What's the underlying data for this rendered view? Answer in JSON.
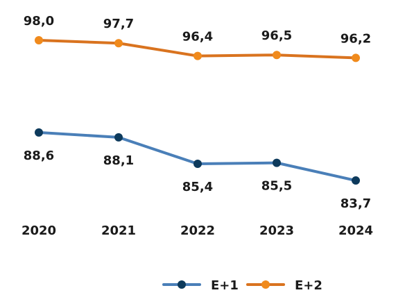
{
  "chart_data": {
    "type": "line",
    "title": "",
    "xlabel": "",
    "ylabel": "",
    "x": [
      "2020",
      "2021",
      "2022",
      "2023",
      "2024"
    ],
    "ylim": [
      80,
      100
    ],
    "grid": false,
    "legend_position": "bottom-center",
    "series": [
      {
        "name": "E+1",
        "color": "#4a7fb8",
        "marker_color": "#0d3a5c",
        "values": [
          88.6,
          88.1,
          85.4,
          85.5,
          83.7
        ],
        "labels": [
          "88,6",
          "88,1",
          "85,4",
          "85,5",
          "83,7"
        ],
        "label_side": "below"
      },
      {
        "name": "E+2",
        "color": "#d9731f",
        "marker_color": "#f08a1c",
        "values": [
          98.0,
          97.7,
          96.4,
          96.5,
          96.2
        ],
        "labels": [
          "98,0",
          "97,7",
          "96,4",
          "96,5",
          "96,2"
        ],
        "label_side": "above"
      }
    ]
  }
}
